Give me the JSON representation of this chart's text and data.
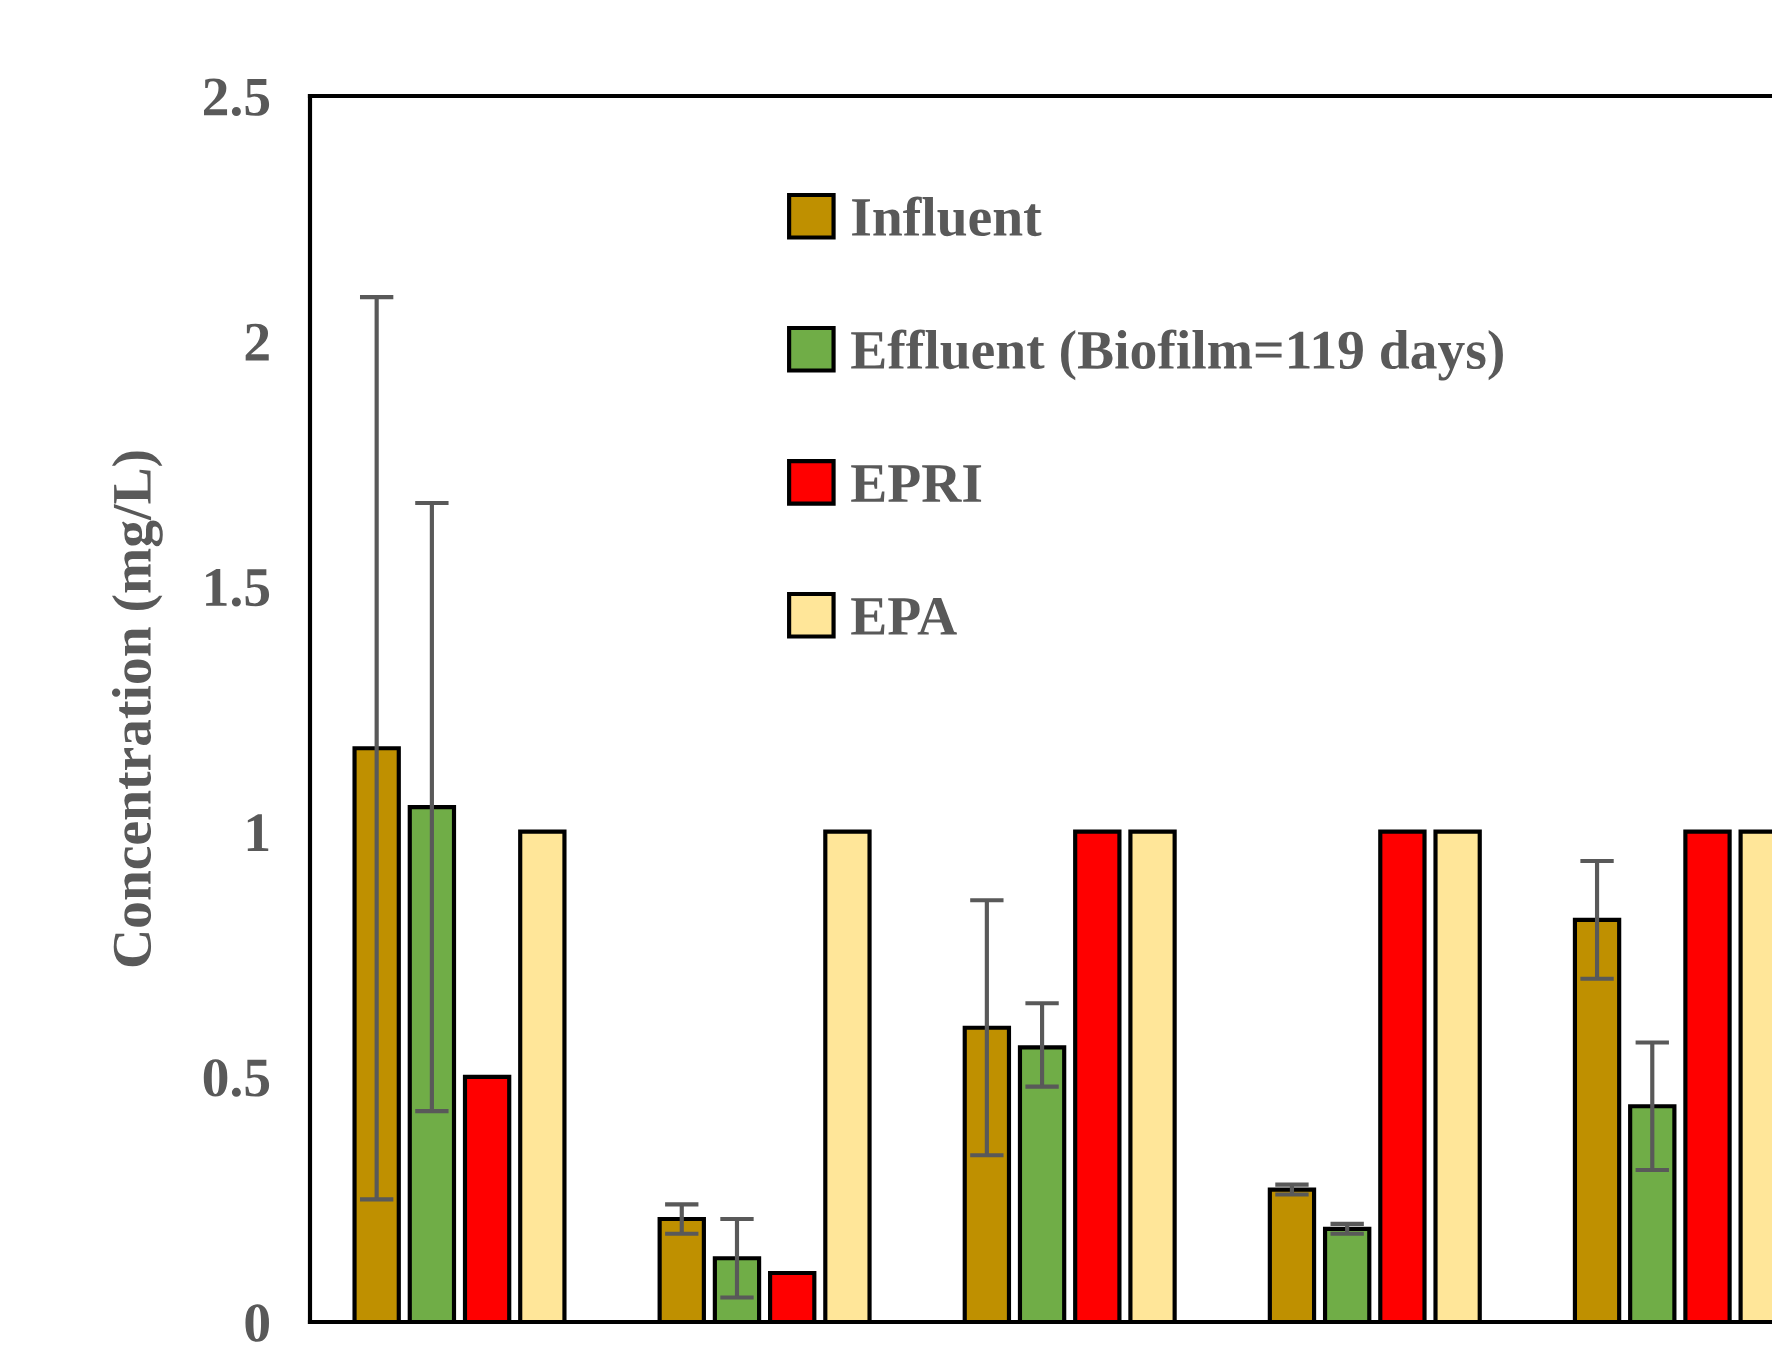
{
  "chart_data": {
    "type": "bar",
    "ylabel": "Concentration (mg/L)",
    "categories": [
      null,
      null,
      null,
      null,
      null
    ],
    "ylim": [
      0,
      2.5
    ],
    "yticks": [
      0,
      0.5,
      1,
      1.5,
      2,
      2.5
    ],
    "grid": false,
    "legend": "top",
    "series": [
      {
        "name": "Influent",
        "color": "#bf9000",
        "values": [
          1.17,
          0.21,
          0.6,
          0.27,
          0.82
        ],
        "errors": [
          [
            0.25,
            2.09
          ],
          [
            0.18,
            0.24
          ],
          [
            0.34,
            0.86
          ],
          [
            0.26,
            0.28
          ],
          [
            0.7,
            0.94
          ]
        ]
      },
      {
        "name": "Effluent (Biofilm=119 days)",
        "color": "#70ad47",
        "values": [
          1.05,
          0.13,
          0.56,
          0.19,
          0.44
        ],
        "errors": [
          [
            0.43,
            1.67
          ],
          [
            0.05,
            0.21
          ],
          [
            0.48,
            0.65
          ],
          0.01,
          [
            0.31,
            0.57
          ]
        ]
      },
      {
        "name": "EPRI",
        "color": "#ff0000",
        "values": [
          0.5,
          0.1,
          1,
          1,
          1
        ]
      },
      {
        "name": "EPA",
        "color": "#ffe699",
        "values": [
          1,
          1,
          1,
          1,
          1
        ]
      }
    ]
  }
}
